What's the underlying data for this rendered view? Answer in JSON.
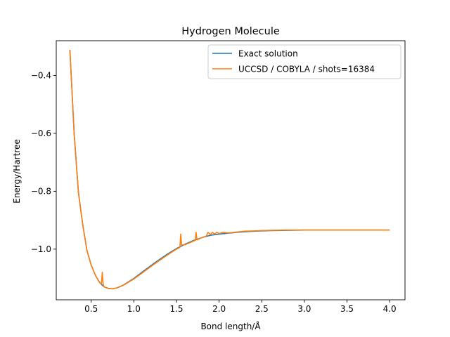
{
  "chart_data": {
    "type": "line",
    "title": "Hydrogen Molecule",
    "xlabel": "Bond length/Å",
    "ylabel": "Energy/Hartree",
    "xlim": [
      0.09,
      4.18
    ],
    "ylim": [
      -1.175,
      -0.28
    ],
    "xticks": [
      0.5,
      1.0,
      1.5,
      2.0,
      2.5,
      3.0,
      3.5,
      4.0
    ],
    "xtick_labels": [
      "0.5",
      "1.0",
      "1.5",
      "2.0",
      "2.5",
      "3.0",
      "3.5",
      "4.0"
    ],
    "yticks": [
      -1.0,
      -0.8,
      -0.6,
      -0.4
    ],
    "ytick_labels": [
      "−1.0",
      "−0.8",
      "−0.6",
      "−0.4"
    ],
    "grid": false,
    "legend_position": "top-right",
    "series": [
      {
        "name": "Exact solution",
        "color": "#1f77b4",
        "x": [
          0.25,
          0.3,
          0.35,
          0.4,
          0.45,
          0.5,
          0.55,
          0.6,
          0.65,
          0.7,
          0.75,
          0.8,
          0.85,
          0.9,
          1.0,
          1.1,
          1.2,
          1.3,
          1.4,
          1.5,
          1.6,
          1.7,
          1.8,
          1.9,
          2.0,
          2.2,
          2.4,
          2.6,
          2.8,
          3.0,
          3.5,
          4.0
        ],
        "y": [
          -0.312,
          -0.601,
          -0.804,
          -0.914,
          -1.005,
          -1.055,
          -1.091,
          -1.116,
          -1.13,
          -1.136,
          -1.137,
          -1.134,
          -1.128,
          -1.12,
          -1.101,
          -1.079,
          -1.057,
          -1.036,
          -1.016,
          -0.998,
          -0.983,
          -0.97,
          -0.96,
          -0.952,
          -0.948,
          -0.942,
          -0.938,
          -0.936,
          -0.935,
          -0.934,
          -0.934,
          -0.934
        ]
      },
      {
        "name": "UCCSD / COBYLA / shots=16384",
        "color": "#ff7f0e",
        "x": [
          0.25,
          0.3,
          0.35,
          0.4,
          0.45,
          0.5,
          0.55,
          0.6,
          0.62,
          0.63,
          0.64,
          0.65,
          0.7,
          0.75,
          0.8,
          0.85,
          0.9,
          1.0,
          1.1,
          1.2,
          1.3,
          1.4,
          1.5,
          1.54,
          1.55,
          1.56,
          1.6,
          1.7,
          1.72,
          1.73,
          1.74,
          1.8,
          1.85,
          1.87,
          1.9,
          1.92,
          1.95,
          1.97,
          2.0,
          2.05,
          2.1,
          2.2,
          2.3,
          2.4,
          2.5,
          2.6,
          2.8,
          3.0,
          3.5,
          4.0
        ],
        "y": [
          -0.312,
          -0.601,
          -0.804,
          -0.914,
          -1.005,
          -1.055,
          -1.091,
          -1.116,
          -1.12,
          -1.08,
          -1.12,
          -1.13,
          -1.136,
          -1.137,
          -1.134,
          -1.128,
          -1.121,
          -1.103,
          -1.082,
          -1.06,
          -1.039,
          -1.019,
          -1.0,
          -0.994,
          -0.948,
          -0.985,
          -0.985,
          -0.972,
          -0.97,
          -0.942,
          -0.968,
          -0.96,
          -0.955,
          -0.942,
          -0.95,
          -0.942,
          -0.948,
          -0.942,
          -0.946,
          -0.942,
          -0.944,
          -0.941,
          -0.938,
          -0.937,
          -0.936,
          -0.935,
          -0.934,
          -0.934,
          -0.934,
          -0.934
        ]
      }
    ]
  }
}
